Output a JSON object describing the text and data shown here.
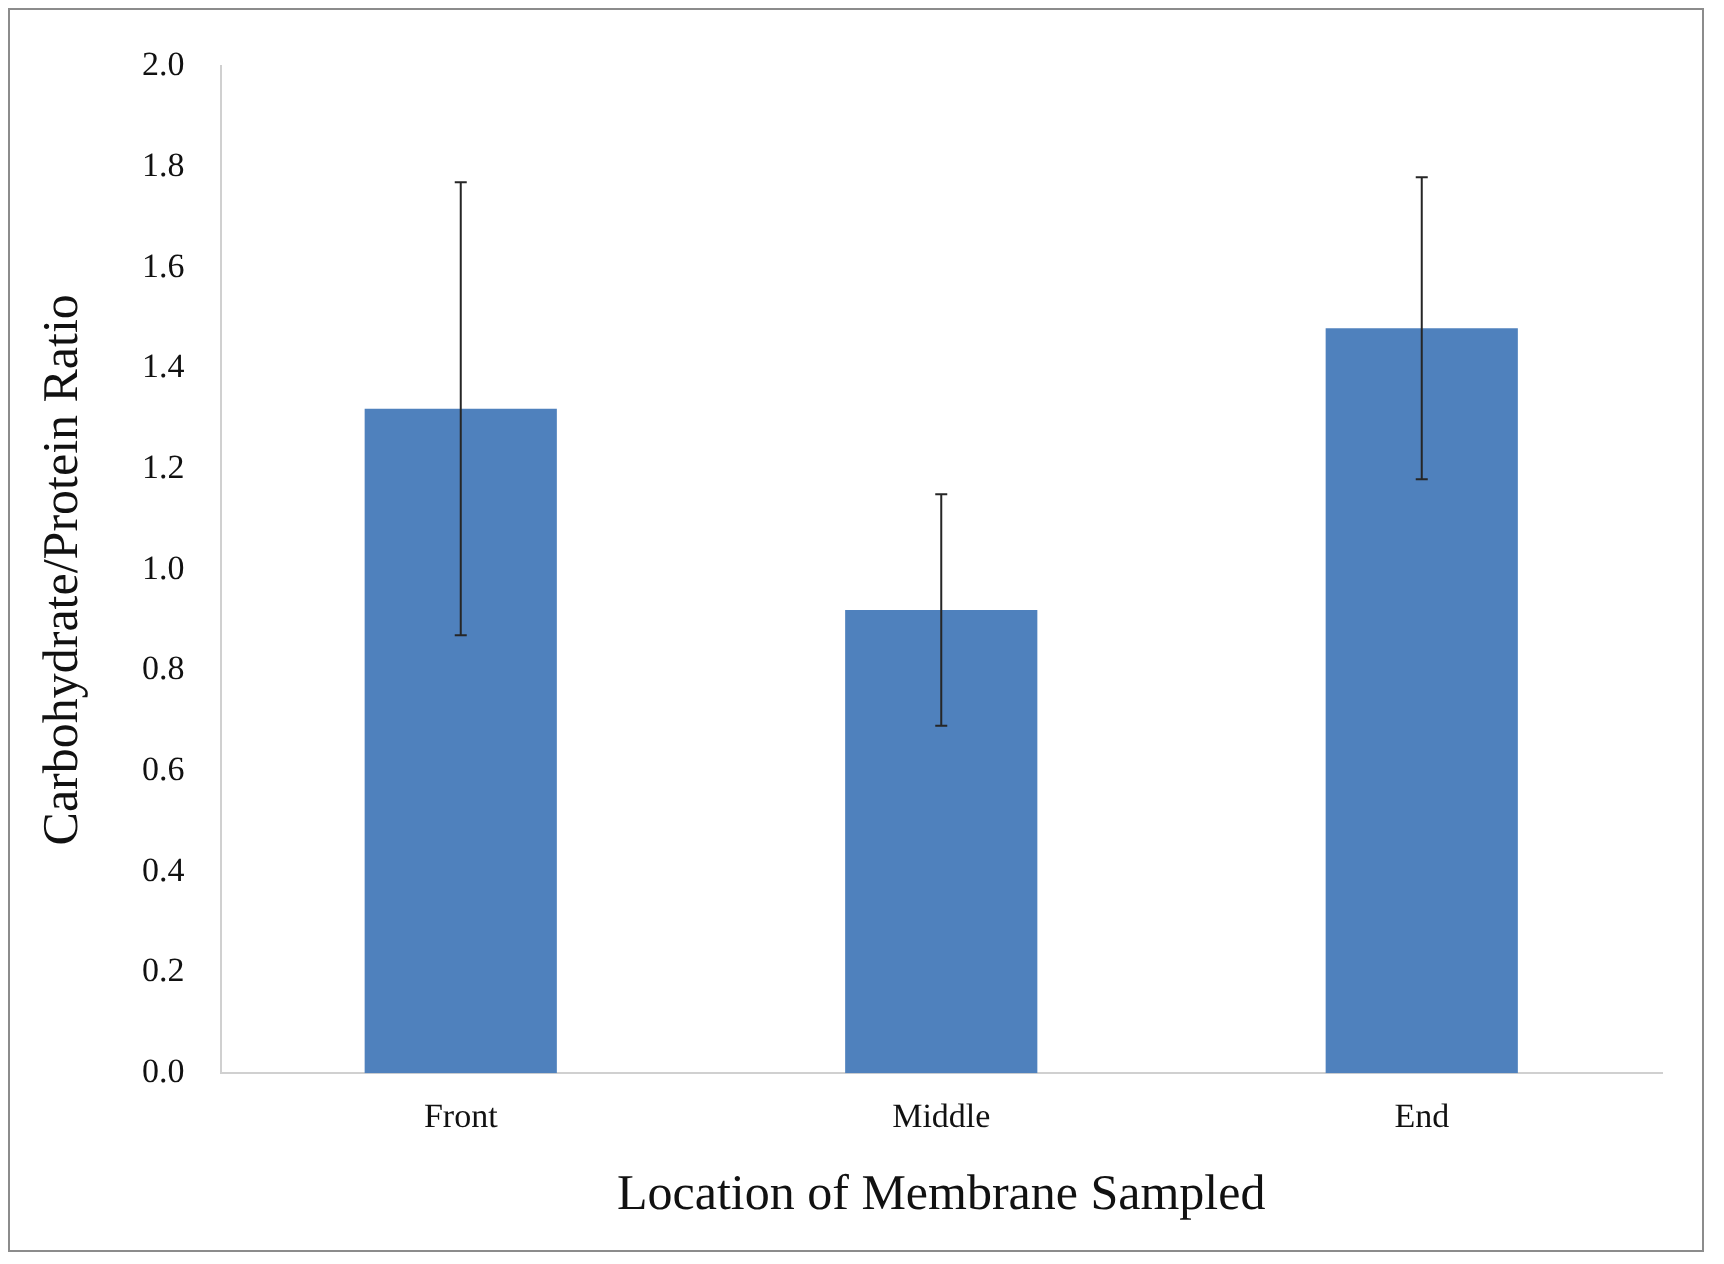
{
  "chart_data": {
    "type": "bar",
    "xlabel": "Location of Membrane Sampled",
    "ylabel": "Carbohydrate/Protein Ratio",
    "categories": [
      "Front",
      "Middle",
      "End"
    ],
    "values": [
      1.32,
      0.92,
      1.48
    ],
    "errors": [
      0.45,
      0.23,
      0.3
    ],
    "color": "#4f81bd",
    "ylim": [
      0,
      2.0
    ],
    "yticks": [
      {
        "value": 0,
        "label": "0.0"
      },
      {
        "value": 0.2,
        "label": "0.2"
      },
      {
        "value": 0.4,
        "label": "0.4"
      },
      {
        "value": 0.6,
        "label": "0.6"
      },
      {
        "value": 0.8,
        "label": "0.8"
      },
      {
        "value": 1.0,
        "label": "1.0"
      },
      {
        "value": 1.2,
        "label": "1.2"
      },
      {
        "value": 1.4,
        "label": "1.4"
      },
      {
        "value": 1.6,
        "label": "1.6"
      },
      {
        "value": 1.8,
        "label": "1.8"
      },
      {
        "value": 2.0,
        "label": "2.0"
      }
    ],
    "grid": false,
    "legend": false
  }
}
